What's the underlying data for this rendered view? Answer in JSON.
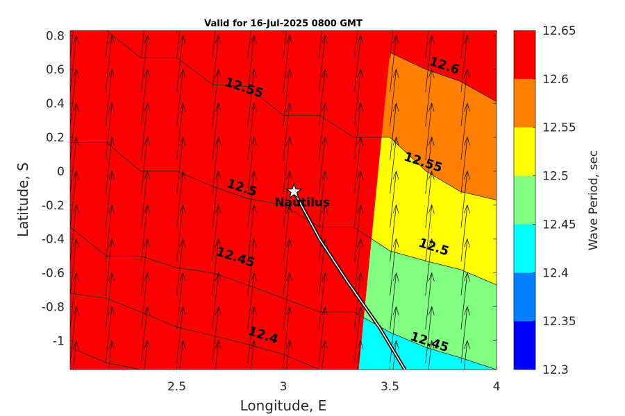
{
  "chart_data": {
    "type": "contour",
    "title": "Valid for 16-Jul-2025 0800 GMT",
    "xlabel": "Longitude, E",
    "ylabel": "Latitude, S",
    "xlim": [
      2.0,
      4.0
    ],
    "ylim": [
      -1.17,
      0.83
    ],
    "xticks": [
      "2.5",
      "3",
      "3.5",
      "4"
    ],
    "yticks": [
      "-1",
      "-0.8",
      "-0.6",
      "-0.4",
      "-0.2",
      "0",
      "0.2",
      "0.4",
      "0.6",
      "0.8"
    ],
    "colorbar": {
      "label": "Wave Period, sec",
      "levels": [
        "12.3",
        "12.35",
        "12.4",
        "12.45",
        "12.5",
        "12.55",
        "12.6",
        "12.65"
      ],
      "colors": [
        "#0000ff",
        "#0080ff",
        "#00ffff",
        "#80ff80",
        "#ffff00",
        "#ff8000",
        "#ff0000"
      ]
    },
    "contour_x": [
      2.0,
      2.17,
      2.33,
      2.5,
      2.67,
      2.83,
      3.0,
      3.17,
      3.33,
      3.5,
      3.67,
      3.83,
      4.0
    ],
    "contours": [
      {
        "level": 12.6,
        "lat": [
          null,
          null,
          null,
          null,
          null,
          null,
          null,
          null,
          null,
          0.7,
          0.6,
          0.53,
          0.41
        ]
      },
      {
        "level": 12.55,
        "lat": [
          0.83,
          0.83,
          0.67,
          0.67,
          0.51,
          0.5,
          0.33,
          0.33,
          0.2,
          0.2,
          0.0,
          -0.12,
          -0.17
        ]
      },
      {
        "level": 12.5,
        "lat": [
          0.17,
          0.17,
          0.0,
          0.0,
          -0.09,
          -0.16,
          -0.2,
          -0.33,
          -0.33,
          -0.47,
          -0.53,
          -0.58,
          -0.67
        ]
      },
      {
        "level": 12.45,
        "lat": [
          -0.33,
          -0.5,
          -0.5,
          -0.57,
          -0.6,
          -0.67,
          -0.75,
          -0.83,
          -0.83,
          -0.95,
          -1.04,
          -1.1,
          -1.17
        ]
      },
      {
        "level": 12.4,
        "lat": [
          -0.72,
          -0.75,
          -0.83,
          -0.92,
          -0.97,
          -1.02,
          -1.08,
          -1.17,
          null,
          null,
          null,
          null,
          null
        ]
      },
      {
        "level": 12.35,
        "lat": [
          -1.04,
          -1.13,
          -1.17,
          null,
          null,
          null,
          null,
          null,
          null,
          null,
          null,
          null,
          null
        ]
      }
    ],
    "contour_labels": [
      {
        "text": "12.6",
        "lon": 3.75,
        "lat": 0.6
      },
      {
        "text": "12.55",
        "lon": 2.81,
        "lat": 0.47
      },
      {
        "text": "12.55",
        "lon": 3.65,
        "lat": 0.03
      },
      {
        "text": "12.5",
        "lon": 2.8,
        "lat": -0.12
      },
      {
        "text": "12.5",
        "lon": 3.7,
        "lat": -0.47
      },
      {
        "text": "12.45",
        "lon": 2.77,
        "lat": -0.53
      },
      {
        "text": "12.45",
        "lon": 3.68,
        "lat": -1.03
      },
      {
        "text": "12.4",
        "lon": 2.9,
        "lat": -0.99
      }
    ],
    "arrows": {
      "lon_spacing": 0.1667,
      "lat_spacing": 0.2,
      "direction": "north-north-east"
    },
    "ship": {
      "name": "Nautilus",
      "lon": 3.05,
      "lat": -0.12
    },
    "track": [
      [
        3.05,
        -0.12
      ],
      [
        3.17,
        -0.4
      ],
      [
        3.3,
        -0.65
      ],
      [
        3.45,
        -0.92
      ],
      [
        3.57,
        -1.17
      ]
    ]
  }
}
